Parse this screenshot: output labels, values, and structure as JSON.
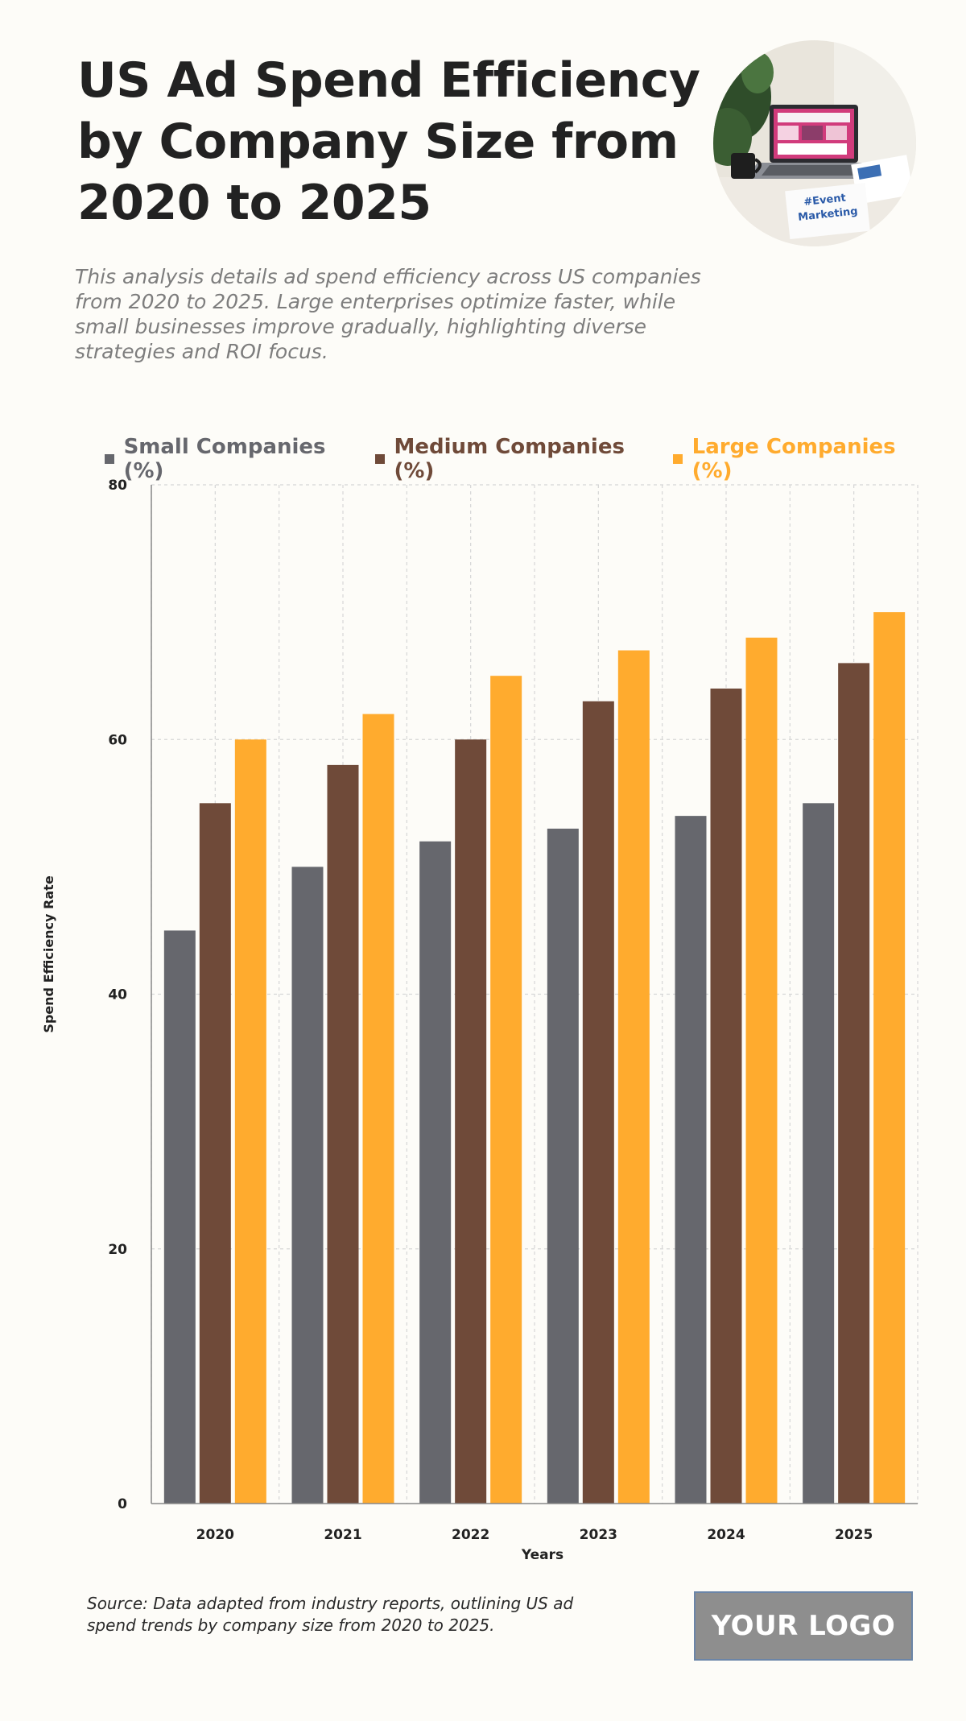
{
  "header": {
    "title": "US Ad Spend Efficiency by Company Size from 2020 to 2025",
    "subtitle": "This analysis details ad spend efficiency across US companies from 2020 to 2025. Large enterprises optimize faster, while small businesses improve gradually, highlighting diverse strategies and ROI focus."
  },
  "photo": {
    "icon": "laptop-desk-photo",
    "caption": "#Event Marketing"
  },
  "colors": {
    "small": "#66676d",
    "medium": "#6f4a39",
    "large": "#ffab2e",
    "grid": "#d6d6d6",
    "axis": "#888888",
    "background": "#fdfcf8"
  },
  "legend": [
    {
      "label": "Small Companies (%)",
      "color": "#66676d"
    },
    {
      "label": "Medium Companies (%)",
      "color": "#6f4a39"
    },
    {
      "label": "Large Companies (%)",
      "color": "#ffab2e"
    }
  ],
  "chart_data": {
    "type": "bar",
    "title": "US Ad Spend Efficiency by Company Size from 2020 to 2025",
    "xlabel": "Years",
    "ylabel": "Spend Efficiency Rate",
    "categories": [
      "2020",
      "2021",
      "2022",
      "2023",
      "2024",
      "2025"
    ],
    "series": [
      {
        "name": "Small Companies (%)",
        "values": [
          45,
          50,
          52,
          53,
          54,
          55
        ]
      },
      {
        "name": "Medium Companies (%)",
        "values": [
          55,
          58,
          60,
          63,
          64,
          66
        ]
      },
      {
        "name": "Large Companies (%)",
        "values": [
          60,
          62,
          65,
          67,
          68,
          70
        ]
      }
    ],
    "ylim": [
      0,
      80
    ],
    "yticks": [
      0,
      20,
      40,
      60,
      80
    ],
    "grid": true,
    "legend_position": "top"
  },
  "footer": {
    "source": "Source: Data adapted from industry reports, outlining US ad spend trends by company size from 2020 to 2025.",
    "logo_text": "YOUR LOGO"
  }
}
